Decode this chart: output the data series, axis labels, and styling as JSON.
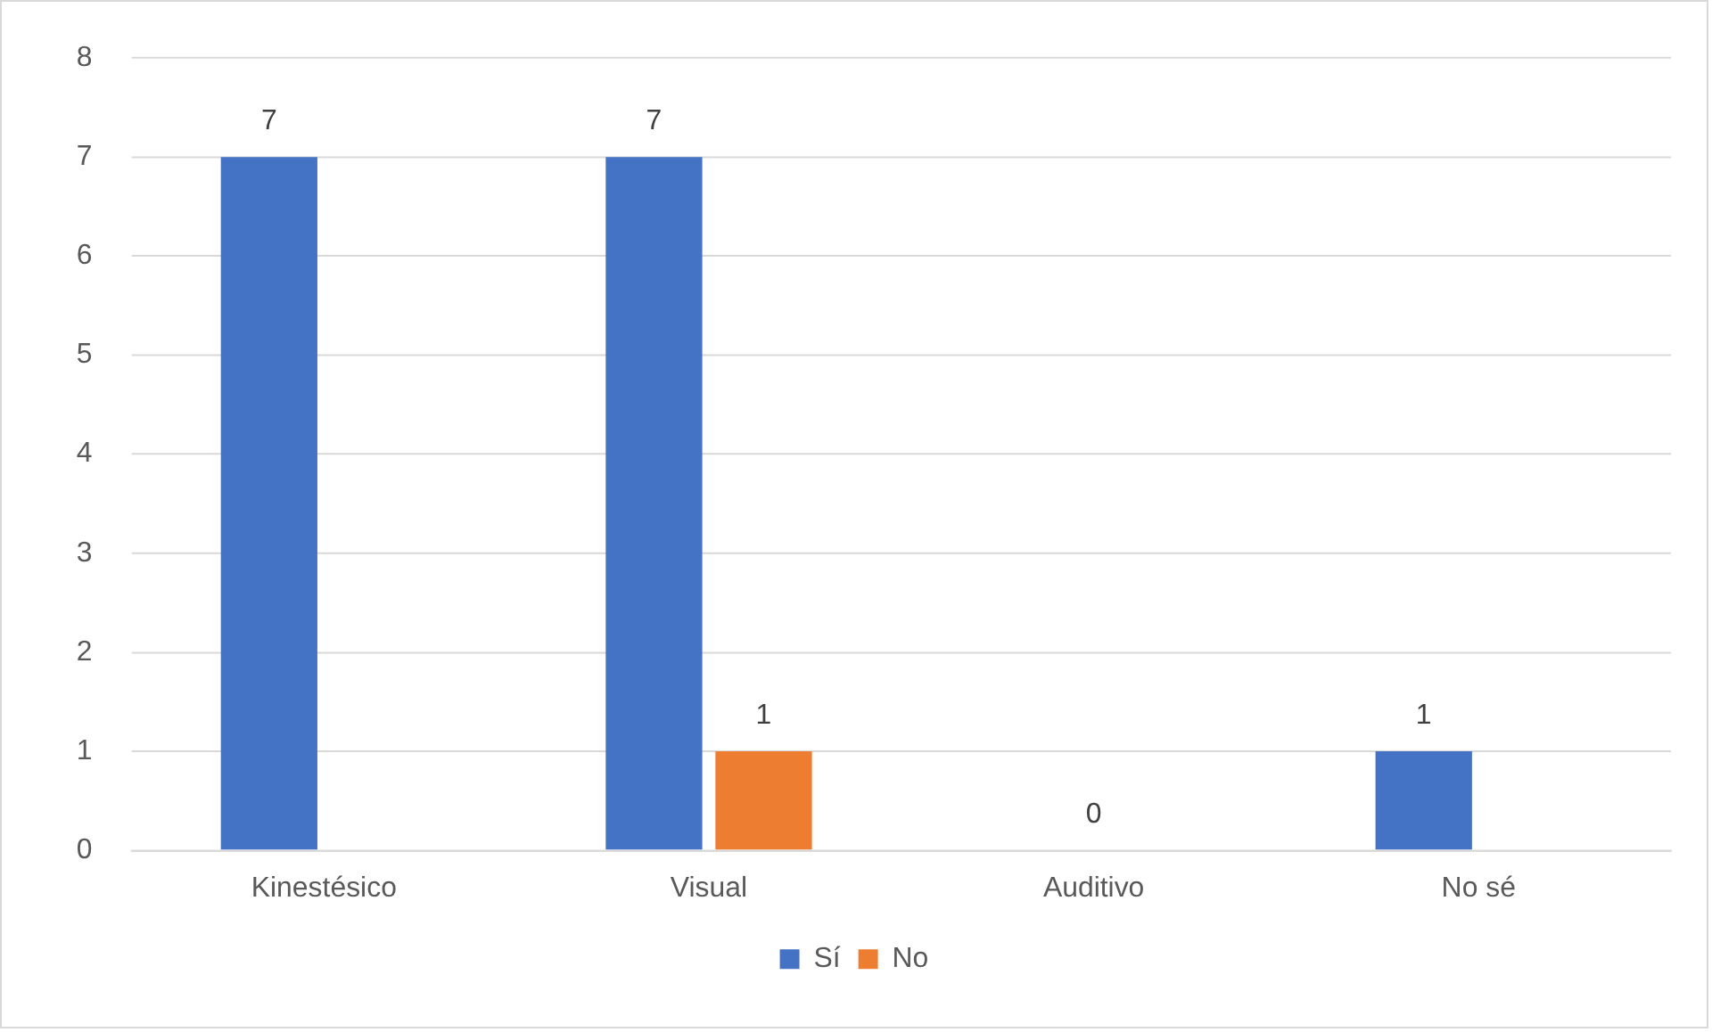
{
  "chart_data": {
    "type": "bar",
    "categories": [
      "Kinestésico",
      "Visual",
      "Auditivo",
      "No sé"
    ],
    "series": [
      {
        "name": "Sí",
        "color": "#4472c4",
        "values": [
          7,
          7,
          0,
          1
        ],
        "value_labels": [
          "7",
          "7",
          null,
          "1"
        ]
      },
      {
        "name": "No",
        "color": "#ed7d31",
        "values": [
          null,
          1,
          null,
          null
        ],
        "value_labels": [
          null,
          "1",
          null,
          null
        ]
      }
    ],
    "annotations": [
      {
        "text": "0",
        "x": "Auditivo",
        "y": 0
      }
    ],
    "ylim": [
      0,
      8
    ],
    "yticks": [
      0,
      1,
      2,
      3,
      4,
      5,
      6,
      7,
      8
    ],
    "grid": "y",
    "legend": "bottom"
  }
}
